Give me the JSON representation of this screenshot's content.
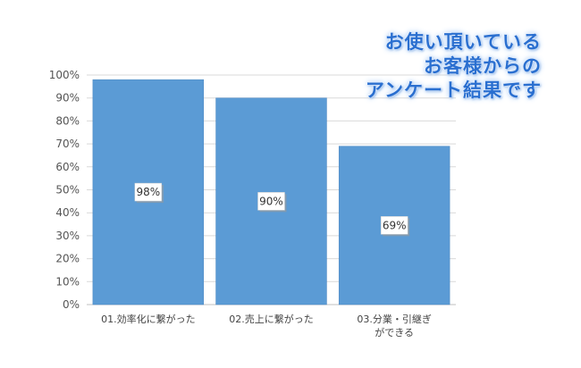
{
  "chart_data": {
    "type": "bar",
    "title_lines": [
      "お使い頂いている",
      "お客様からの",
      "アンケート結果です"
    ],
    "categories": [
      [
        "01.効率化に繋がった"
      ],
      [
        "02.売上に繋がった"
      ],
      [
        "03.分業・引継ぎ",
        "ができる"
      ]
    ],
    "values": [
      98,
      90,
      69
    ],
    "data_labels": [
      "98%",
      "90%",
      "69%"
    ],
    "ylim": [
      0,
      100
    ],
    "y_ticks": [
      "0%",
      "10%",
      "20%",
      "30%",
      "40%",
      "50%",
      "60%",
      "70%",
      "80%",
      "90%",
      "100%"
    ],
    "grid": true,
    "legend": "none",
    "bar_color": "#5b9bd5",
    "bar_edge_color": "#4a86c0"
  }
}
